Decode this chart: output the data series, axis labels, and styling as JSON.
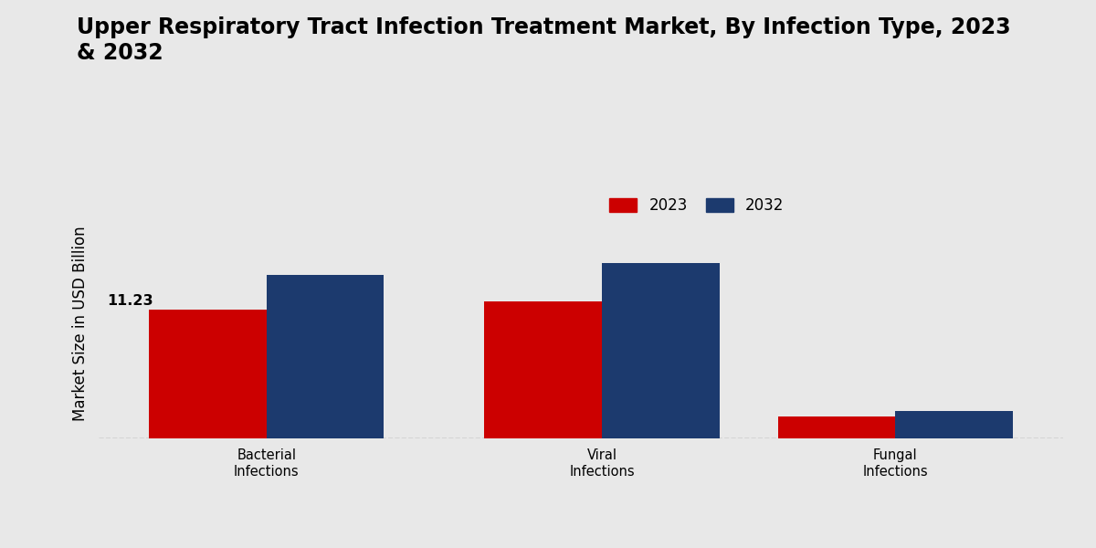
{
  "title": "Upper Respiratory Tract Infection Treatment Market, By Infection Type, 2023\n& 2032",
  "ylabel": "Market Size in USD Billion",
  "categories": [
    "Bacterial\nInfections",
    "Viral\nInfections",
    "Fungal\nInfections"
  ],
  "values_2023": [
    11.23,
    11.9,
    1.9
  ],
  "values_2032": [
    14.2,
    15.2,
    2.4
  ],
  "color_2023": "#CC0000",
  "color_2032": "#1C3A6E",
  "bar_width": 0.28,
  "annotation_value": "11.23",
  "background_color": "#E8E8E8",
  "legend_labels": [
    "2023",
    "2032"
  ],
  "ylim": [
    0,
    20
  ],
  "title_fontsize": 17,
  "axis_label_fontsize": 12,
  "tick_label_fontsize": 10.5,
  "legend_fontsize": 12,
  "x_positions": [
    0.35,
    1.15,
    1.85
  ]
}
